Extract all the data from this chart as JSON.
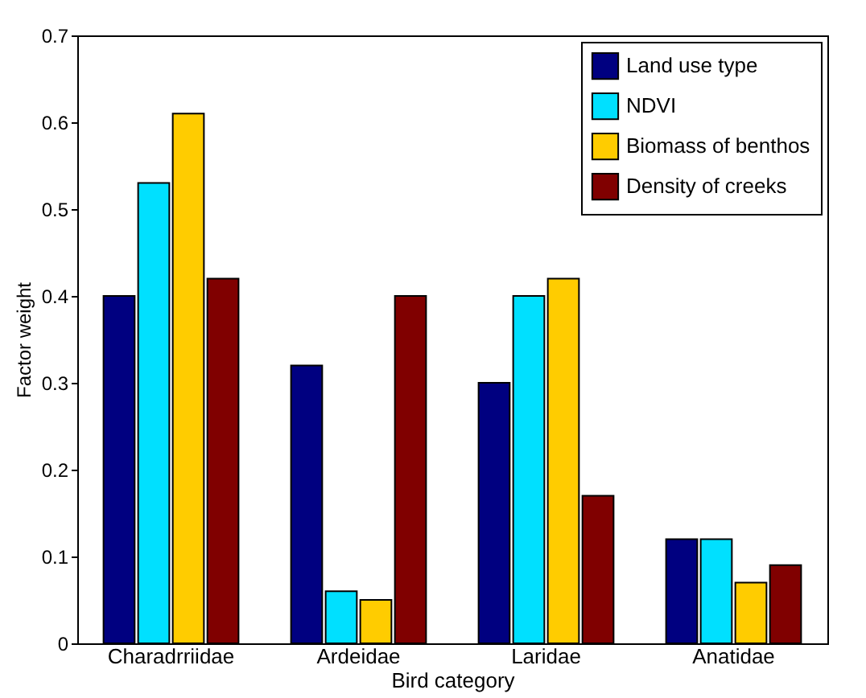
{
  "chart_data": {
    "type": "bar",
    "xlabel": "Bird category",
    "ylabel": "Factor weight",
    "categories": [
      "Charadrriidae",
      "Ardeidae",
      "Laridae",
      "Anatidae"
    ],
    "series": [
      {
        "name": "Land use type",
        "color": "#000080",
        "values": [
          0.4,
          0.32,
          0.3,
          0.12
        ]
      },
      {
        "name": "NDVI",
        "color": "#00e0ff",
        "values": [
          0.53,
          0.06,
          0.4,
          0.12
        ]
      },
      {
        "name": "Biomass of benthos",
        "color": "#ffcc00",
        "values": [
          0.61,
          0.05,
          0.42,
          0.07
        ]
      },
      {
        "name": "Density of creeks",
        "color": "#800000",
        "values": [
          0.42,
          0.4,
          0.17,
          0.09
        ]
      }
    ],
    "ylim": [
      0,
      0.7
    ],
    "yticks": [
      0,
      0.1,
      0.2,
      0.3,
      0.4,
      0.5,
      0.6,
      0.7
    ],
    "legend": "top right",
    "grid": false
  }
}
